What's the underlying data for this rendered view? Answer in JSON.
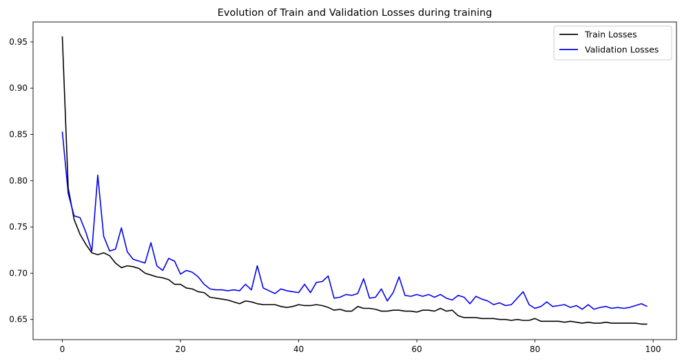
{
  "chart_data": {
    "type": "line",
    "title": "Evolution of Train and Validation Losses during training",
    "xlabel": "",
    "ylabel": "",
    "xlim": [
      -4.95,
      103.95
    ],
    "ylim": [
      0.6282,
      0.9715
    ],
    "xticks": [
      0,
      20,
      40,
      60,
      80,
      100
    ],
    "xtick_labels": [
      "0",
      "20",
      "40",
      "60",
      "80",
      "100"
    ],
    "yticks": [
      0.65,
      0.7,
      0.75,
      0.8,
      0.85,
      0.9,
      0.95
    ],
    "ytick_labels": [
      "0.65",
      "0.70",
      "0.75",
      "0.80",
      "0.85",
      "0.90",
      "0.95"
    ],
    "grid": false,
    "legend_position": "top-right",
    "x": [
      0,
      1,
      2,
      3,
      4,
      5,
      6,
      7,
      8,
      9,
      10,
      11,
      12,
      13,
      14,
      15,
      16,
      17,
      18,
      19,
      20,
      21,
      22,
      23,
      24,
      25,
      26,
      27,
      28,
      29,
      30,
      31,
      32,
      33,
      34,
      35,
      36,
      37,
      38,
      39,
      40,
      41,
      42,
      43,
      44,
      45,
      46,
      47,
      48,
      49,
      50,
      51,
      52,
      53,
      54,
      55,
      56,
      57,
      58,
      59,
      60,
      61,
      62,
      63,
      64,
      65,
      66,
      67,
      68,
      69,
      70,
      71,
      72,
      73,
      74,
      75,
      76,
      77,
      78,
      79,
      80,
      81,
      82,
      83,
      84,
      85,
      86,
      87,
      88,
      89,
      90,
      91,
      92,
      93,
      94,
      95,
      96,
      97,
      98,
      99
    ],
    "series": [
      {
        "name": "Train Losses",
        "color": "#000000",
        "values": [
          0.956,
          0.792,
          0.758,
          0.742,
          0.731,
          0.722,
          0.72,
          0.722,
          0.719,
          0.711,
          0.706,
          0.708,
          0.707,
          0.705,
          0.7,
          0.698,
          0.696,
          0.695,
          0.693,
          0.688,
          0.688,
          0.684,
          0.683,
          0.68,
          0.679,
          0.674,
          0.673,
          0.672,
          0.671,
          0.669,
          0.667,
          0.67,
          0.669,
          0.667,
          0.666,
          0.666,
          0.666,
          0.664,
          0.663,
          0.664,
          0.666,
          0.665,
          0.665,
          0.666,
          0.665,
          0.663,
          0.66,
          0.661,
          0.659,
          0.659,
          0.664,
          0.662,
          0.662,
          0.661,
          0.659,
          0.659,
          0.66,
          0.66,
          0.659,
          0.659,
          0.658,
          0.66,
          0.66,
          0.659,
          0.662,
          0.659,
          0.66,
          0.654,
          0.652,
          0.652,
          0.652,
          0.651,
          0.651,
          0.651,
          0.65,
          0.65,
          0.649,
          0.65,
          0.649,
          0.649,
          0.651,
          0.648,
          0.648,
          0.648,
          0.648,
          0.647,
          0.648,
          0.647,
          0.646,
          0.647,
          0.646,
          0.646,
          0.647,
          0.646,
          0.646,
          0.646,
          0.646,
          0.646,
          0.645,
          0.645
        ]
      },
      {
        "name": "Validation Losses",
        "color": "#0000ee",
        "values": [
          0.853,
          0.786,
          0.762,
          0.76,
          0.744,
          0.724,
          0.806,
          0.74,
          0.724,
          0.726,
          0.749,
          0.723,
          0.715,
          0.713,
          0.711,
          0.733,
          0.708,
          0.703,
          0.716,
          0.713,
          0.699,
          0.703,
          0.701,
          0.696,
          0.688,
          0.683,
          0.682,
          0.682,
          0.681,
          0.682,
          0.681,
          0.688,
          0.682,
          0.708,
          0.684,
          0.681,
          0.678,
          0.683,
          0.681,
          0.68,
          0.679,
          0.688,
          0.679,
          0.69,
          0.691,
          0.697,
          0.673,
          0.674,
          0.677,
          0.676,
          0.678,
          0.694,
          0.673,
          0.674,
          0.683,
          0.67,
          0.679,
          0.696,
          0.676,
          0.675,
          0.677,
          0.675,
          0.677,
          0.674,
          0.677,
          0.673,
          0.671,
          0.676,
          0.674,
          0.667,
          0.675,
          0.672,
          0.67,
          0.666,
          0.668,
          0.665,
          0.666,
          0.673,
          0.68,
          0.666,
          0.662,
          0.664,
          0.669,
          0.664,
          0.665,
          0.666,
          0.663,
          0.665,
          0.661,
          0.666,
          0.661,
          0.663,
          0.664,
          0.662,
          0.663,
          0.662,
          0.663,
          0.665,
          0.667,
          0.664
        ]
      }
    ]
  }
}
